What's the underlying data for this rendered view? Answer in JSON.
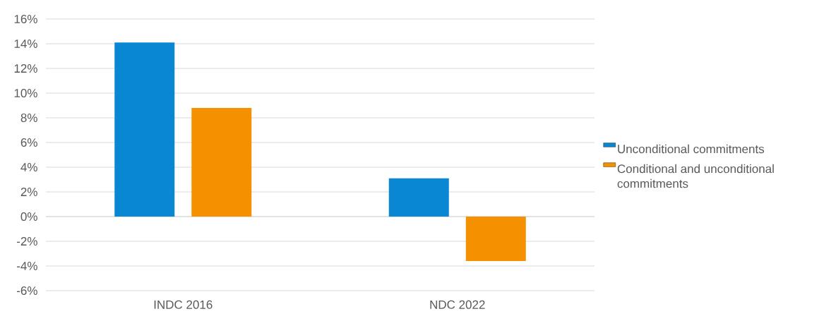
{
  "chart_data": {
    "type": "bar",
    "categories": [
      "INDC 2016",
      "NDC 2022"
    ],
    "series": [
      {
        "name": "Unconditional commitments",
        "color": "#0A87D2",
        "values": [
          14.1,
          3.1
        ]
      },
      {
        "name": "Conditional and unconditional commitments",
        "color": "#F59100",
        "values": [
          8.8,
          -3.6
        ]
      }
    ],
    "ylim": [
      -6,
      16
    ],
    "yticks": [
      {
        "value": -6,
        "label": "-6%"
      },
      {
        "value": -4,
        "label": "-4%"
      },
      {
        "value": -2,
        "label": "-2%"
      },
      {
        "value": 0,
        "label": "0%"
      },
      {
        "value": 2,
        "label": "2%"
      },
      {
        "value": 4,
        "label": "4%"
      },
      {
        "value": 6,
        "label": "6%"
      },
      {
        "value": 8,
        "label": "8%"
      },
      {
        "value": 10,
        "label": "10%"
      },
      {
        "value": 12,
        "label": "12%"
      },
      {
        "value": 14,
        "label": "14%"
      },
      {
        "value": 16,
        "label": "16%"
      }
    ],
    "grid": "y",
    "legend": "right"
  }
}
